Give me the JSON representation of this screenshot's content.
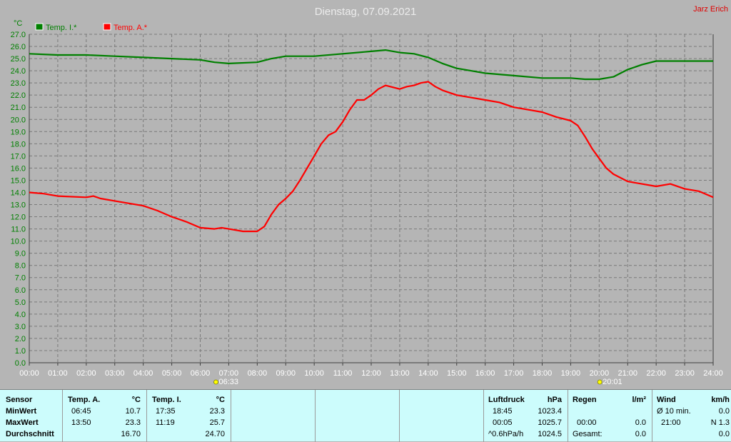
{
  "title": "Dienstag, 07.09.2021",
  "author": "Jarz Erich",
  "colors": {
    "background": "#b5b5b5",
    "inside": "#008000",
    "outside": "#ff0000",
    "grid": "#7a7a7a",
    "panel": "#ccfcfc"
  },
  "chart_data": {
    "type": "line",
    "ylabel": "°C",
    "ylim": [
      0,
      27
    ],
    "y_step": 1,
    "xlim": [
      0,
      24
    ],
    "x_ticks": [
      "00:00",
      "01:00",
      "02:00",
      "03:00",
      "04:00",
      "05:00",
      "06:00",
      "07:00",
      "08:00",
      "09:00",
      "10:00",
      "11:00",
      "12:00",
      "13:00",
      "14:00",
      "15:00",
      "16:00",
      "17:00",
      "18:00",
      "19:00",
      "20:00",
      "21:00",
      "22:00",
      "23:00",
      "24:00"
    ],
    "grid": true,
    "legend_position": "top-left",
    "sunrise": {
      "time": "06:33",
      "hour": 6.55
    },
    "sunset": {
      "time": "20:01",
      "hour": 20.02
    },
    "series": [
      {
        "name": "Temp. I.*",
        "color": "#008000",
        "points": [
          [
            0,
            25.4
          ],
          [
            1,
            25.3
          ],
          [
            2,
            25.3
          ],
          [
            3,
            25.2
          ],
          [
            4,
            25.1
          ],
          [
            5,
            25.0
          ],
          [
            6,
            24.9
          ],
          [
            6.5,
            24.7
          ],
          [
            7,
            24.6
          ],
          [
            8,
            24.7
          ],
          [
            8.5,
            25.0
          ],
          [
            9,
            25.2
          ],
          [
            10,
            25.2
          ],
          [
            11,
            25.4
          ],
          [
            12,
            25.6
          ],
          [
            12.5,
            25.7
          ],
          [
            13,
            25.5
          ],
          [
            13.5,
            25.4
          ],
          [
            14,
            25.1
          ],
          [
            14.5,
            24.6
          ],
          [
            15,
            24.2
          ],
          [
            15.5,
            24.0
          ],
          [
            16,
            23.8
          ],
          [
            17,
            23.6
          ],
          [
            18,
            23.4
          ],
          [
            19,
            23.4
          ],
          [
            19.5,
            23.3
          ],
          [
            20,
            23.3
          ],
          [
            20.5,
            23.5
          ],
          [
            21,
            24.1
          ],
          [
            21.5,
            24.5
          ],
          [
            22,
            24.8
          ],
          [
            23,
            24.8
          ],
          [
            24,
            24.8
          ]
        ]
      },
      {
        "name": "Temp. A.*",
        "color": "#ff0000",
        "points": [
          [
            0,
            14.0
          ],
          [
            0.5,
            13.9
          ],
          [
            1,
            13.7
          ],
          [
            2,
            13.6
          ],
          [
            2.25,
            13.7
          ],
          [
            2.5,
            13.5
          ],
          [
            3,
            13.3
          ],
          [
            3.5,
            13.1
          ],
          [
            4,
            12.9
          ],
          [
            4.5,
            12.5
          ],
          [
            5,
            12.0
          ],
          [
            5.5,
            11.6
          ],
          [
            6,
            11.1
          ],
          [
            6.5,
            11.0
          ],
          [
            6.75,
            11.1
          ],
          [
            7,
            11.0
          ],
          [
            7.5,
            10.8
          ],
          [
            8,
            10.8
          ],
          [
            8.25,
            11.2
          ],
          [
            8.5,
            12.2
          ],
          [
            8.75,
            13.0
          ],
          [
            9,
            13.5
          ],
          [
            9.25,
            14.1
          ],
          [
            9.5,
            15.0
          ],
          [
            9.75,
            16.0
          ],
          [
            10,
            17.0
          ],
          [
            10.25,
            18.0
          ],
          [
            10.5,
            18.7
          ],
          [
            10.75,
            19.0
          ],
          [
            11,
            19.8
          ],
          [
            11.25,
            20.8
          ],
          [
            11.5,
            21.6
          ],
          [
            11.75,
            21.6
          ],
          [
            12,
            22.0
          ],
          [
            12.25,
            22.5
          ],
          [
            12.5,
            22.8
          ],
          [
            13,
            22.5
          ],
          [
            13.25,
            22.7
          ],
          [
            13.5,
            22.8
          ],
          [
            13.75,
            23.0
          ],
          [
            14,
            23.1
          ],
          [
            14.25,
            22.7
          ],
          [
            14.5,
            22.4
          ],
          [
            15,
            22.0
          ],
          [
            15.5,
            21.8
          ],
          [
            16,
            21.6
          ],
          [
            16.5,
            21.4
          ],
          [
            17,
            21.0
          ],
          [
            17.5,
            20.8
          ],
          [
            18,
            20.6
          ],
          [
            18.5,
            20.2
          ],
          [
            19,
            19.9
          ],
          [
            19.25,
            19.5
          ],
          [
            19.5,
            18.6
          ],
          [
            19.75,
            17.6
          ],
          [
            20,
            16.8
          ],
          [
            20.25,
            16.0
          ],
          [
            20.5,
            15.5
          ],
          [
            21,
            14.9
          ],
          [
            21.5,
            14.7
          ],
          [
            22,
            14.5
          ],
          [
            22.5,
            14.7
          ],
          [
            23,
            14.3
          ],
          [
            23.5,
            14.1
          ],
          [
            24,
            13.6
          ]
        ]
      }
    ]
  },
  "panel": {
    "sensor": {
      "header": "Sensor",
      "min": "MinWert",
      "max": "MaxWert",
      "avg": "Durchschnitt"
    },
    "temp_a": {
      "header": "Temp. A.",
      "unit": "°C",
      "min_time": "06:45",
      "min_val": "10.7",
      "max_time": "13:50",
      "max_val": "23.3",
      "avg": "16.70"
    },
    "temp_i": {
      "header": "Temp. I.",
      "unit": "°C",
      "min_time": "17:35",
      "min_val": "23.3",
      "max_time": "11:19",
      "max_val": "25.7",
      "avg": "24.70"
    },
    "pressure": {
      "header": "Luftdruck",
      "unit": "hPa",
      "min_time": "18:45",
      "min_val": "1023.4",
      "max_time": "00:05",
      "max_val": "1025.7",
      "trend_label": "^0.6hPa/h",
      "trend_val": "1024.5"
    },
    "rain": {
      "header": "Regen",
      "unit": "l/m²",
      "row2_time": "00:00",
      "row2_val": "0.0",
      "total_label": "Gesamt:",
      "total_val": "0.0"
    },
    "wind": {
      "header": "Wind",
      "unit": "km/h",
      "avg_label": "Ø 10 min.",
      "avg_val": "0.0",
      "row2_time": "21:00",
      "row2_val": "N 1.3",
      "row3_val": "0.0"
    }
  }
}
